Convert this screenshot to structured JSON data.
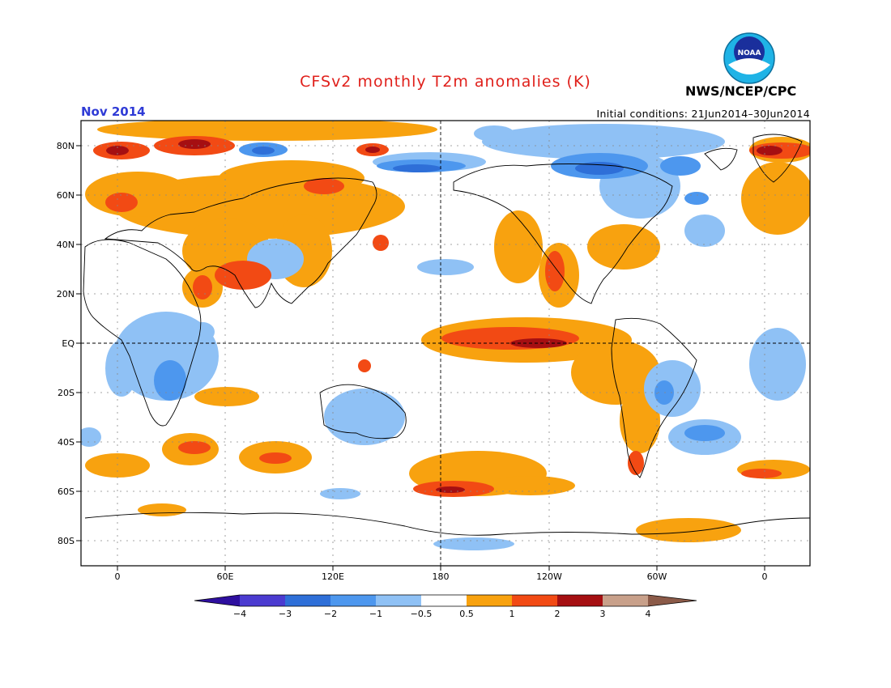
{
  "header": {
    "title": "CFSv2 monthly T2m anomalies (K)",
    "agency": "NWS/NCEP/CPC",
    "logo_text": "NOAA",
    "month": "Nov 2014",
    "initial_conditions": "Initial conditions: 21Jun2014–30Jun2014"
  },
  "axes": {
    "lat_labels": [
      "80N",
      "60N",
      "40N",
      "20N",
      "EQ",
      "20S",
      "40S",
      "60S",
      "80S"
    ],
    "lon_labels": [
      "0",
      "60E",
      "120E",
      "180",
      "120W",
      "60W",
      "0"
    ]
  },
  "colorbar": {
    "labels": [
      "−4",
      "−3",
      "−2",
      "−1",
      "−0.5",
      "0.5",
      "1",
      "2",
      "3",
      "4"
    ],
    "colors": [
      "#2e0f9f",
      "#4b3bd0",
      "#2e6fd8",
      "#4d97ee",
      "#8fc1f5",
      "#ffffff",
      "#f8a20f",
      "#f24a14",
      "#a50f12",
      "#c8a08a",
      "#8b5a48"
    ]
  },
  "palette": {
    "title": "#e0201b",
    "month": "#2f3bd6"
  }
}
